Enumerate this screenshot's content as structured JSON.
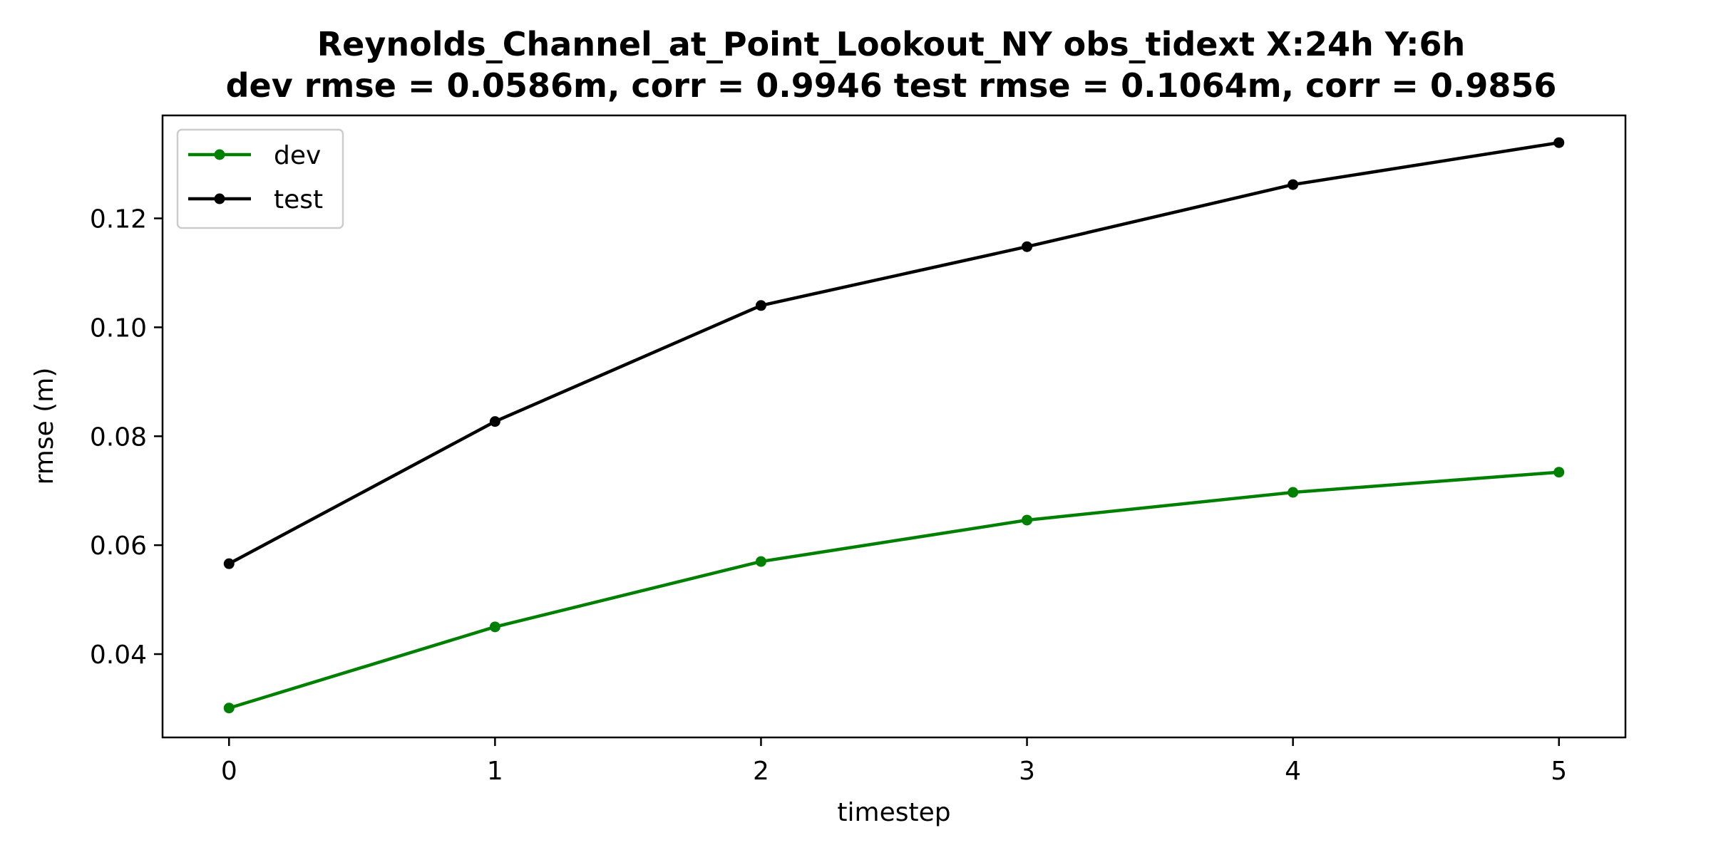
{
  "chart_data": {
    "type": "line",
    "title": "Reynolds_Channel_at_Point_Lookout_NY   obs_tidext   X:24h   Y:6h",
    "subtitle": "dev rmse = 0.0586m, corr = 0.9946   test rmse = 0.1064m, corr = 0.9856",
    "xlabel": "timestep",
    "ylabel": "rmse (m)",
    "x": [
      0,
      1,
      2,
      3,
      4,
      5
    ],
    "xticks": [
      "0",
      "1",
      "2",
      "3",
      "4",
      "5"
    ],
    "yticks": [
      "0.04",
      "0.06",
      "0.08",
      "0.10",
      "0.12"
    ],
    "xlim": [
      -0.25,
      5.25
    ],
    "ylim": [
      0.0247,
      0.1389
    ],
    "grid": false,
    "legend_position": "upper-left",
    "series": [
      {
        "name": "dev",
        "color": "#008000",
        "values": [
          0.0301,
          0.045,
          0.057,
          0.0646,
          0.0697,
          0.0734
        ]
      },
      {
        "name": "test",
        "color": "#000000",
        "values": [
          0.0566,
          0.0827,
          0.104,
          0.1148,
          0.1262,
          0.1339
        ]
      }
    ]
  }
}
